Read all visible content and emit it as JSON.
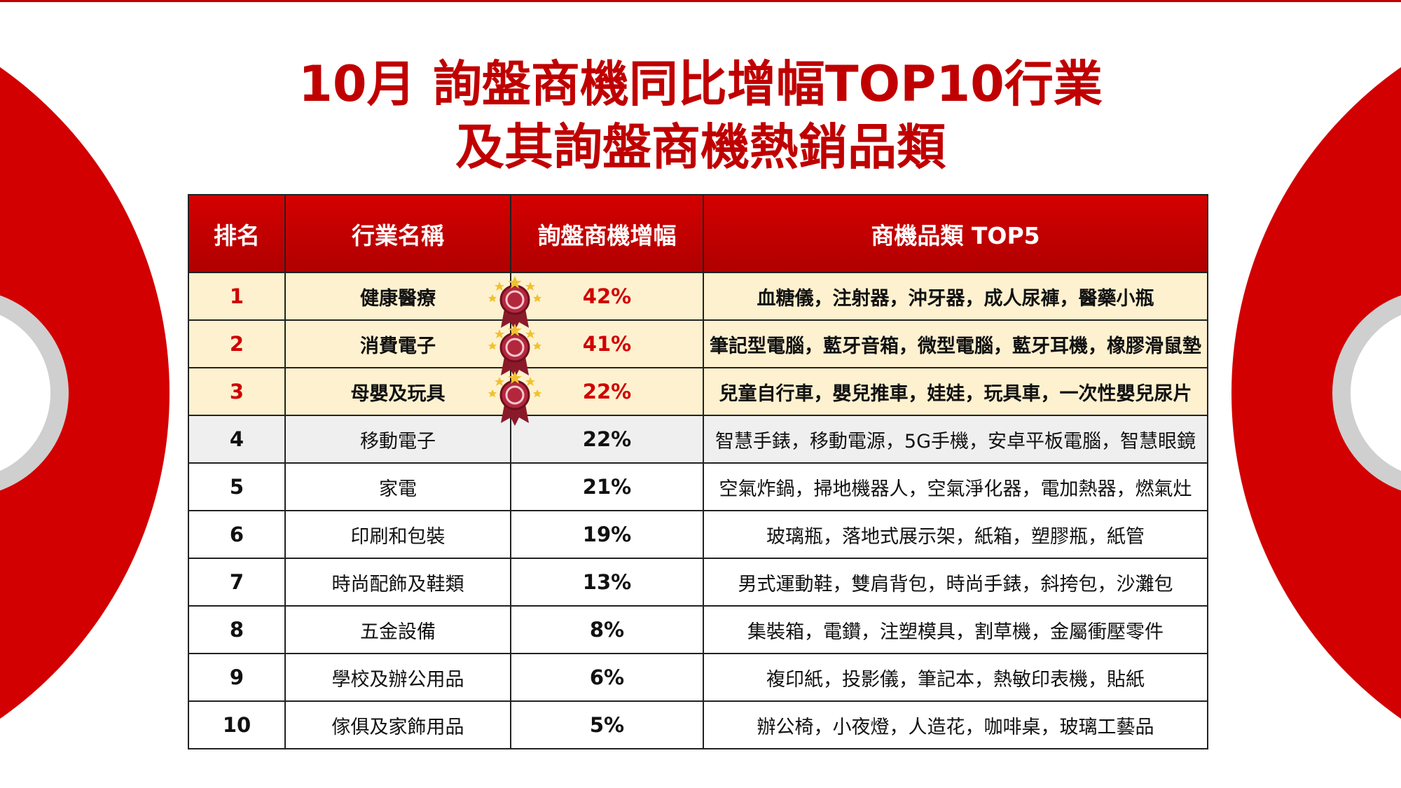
{
  "title": [
    "10月 詢盤商機同比增幅TOP10行業",
    "及其詢盤商機熱銷品類"
  ],
  "table": {
    "header": [
      "排名",
      "行業名稱",
      "詢盤商機增幅",
      "商機品類 TOP5"
    ],
    "rows": [
      [
        "1",
        "健康醫療",
        "42%",
        "血糖儀，注射器，沖牙器，成人尿褲，醫藥小瓶"
      ],
      [
        "2",
        "消費電子",
        "41%",
        "筆記型電腦，藍牙音箱，微型電腦，藍牙耳機，橡膠滑鼠墊"
      ],
      [
        "3",
        "母嬰及玩具",
        "22%",
        "兒童自行車，嬰兒推車，娃娃，玩具車，一次性嬰兒尿片"
      ],
      [
        "4",
        "移動電子",
        "22%",
        "智慧手錶，移動電源，5G手機，安卓平板電腦，智慧眼鏡"
      ],
      [
        "5",
        "家電",
        "21%",
        "空氣炸鍋，掃地機器人，空氣淨化器，電加熱器，燃氣灶"
      ],
      [
        "6",
        "印刷和包裝",
        "19%",
        "玻璃瓶，落地式展示架，紙箱，塑膠瓶，紙管"
      ],
      [
        "7",
        "時尚配飾及鞋類",
        "13%",
        "男式運動鞋，雙肩背包，時尚手錶，斜挎包，沙灘包"
      ],
      [
        "8",
        "五金設備",
        "8%",
        "集裝箱，電鑽，注塑模具，割草機，金屬衝壓零件"
      ],
      [
        "9",
        "學校及辦公用品",
        "6%",
        "複印紙，投影儀，筆記本，熱敏印表機，貼紙"
      ],
      [
        "10",
        "傢俱及家飾用品",
        "5%",
        "辦公椅，小夜燈，人造花，咖啡桌，玻璃工藝品"
      ]
    ]
  }
}
